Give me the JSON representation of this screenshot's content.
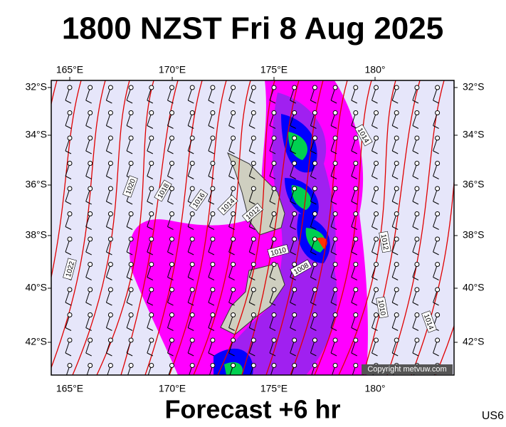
{
  "title": "1800 NZST Fri 8 Aug 2025",
  "footer": "Forecast +6 hr",
  "code": "US6",
  "copyright": "Copyright metvuw.com",
  "lon_labels": [
    "165°E",
    "170°E",
    "175°E",
    "180°"
  ],
  "lat_labels": [
    "32°S",
    "34°S",
    "36°S",
    "38°S",
    "40°S",
    "42°S"
  ],
  "isobar_labels": [
    1020,
    1018,
    1016,
    1014,
    1012,
    1010,
    1008,
    1014,
    1012,
    1010,
    1014,
    1022
  ]
}
